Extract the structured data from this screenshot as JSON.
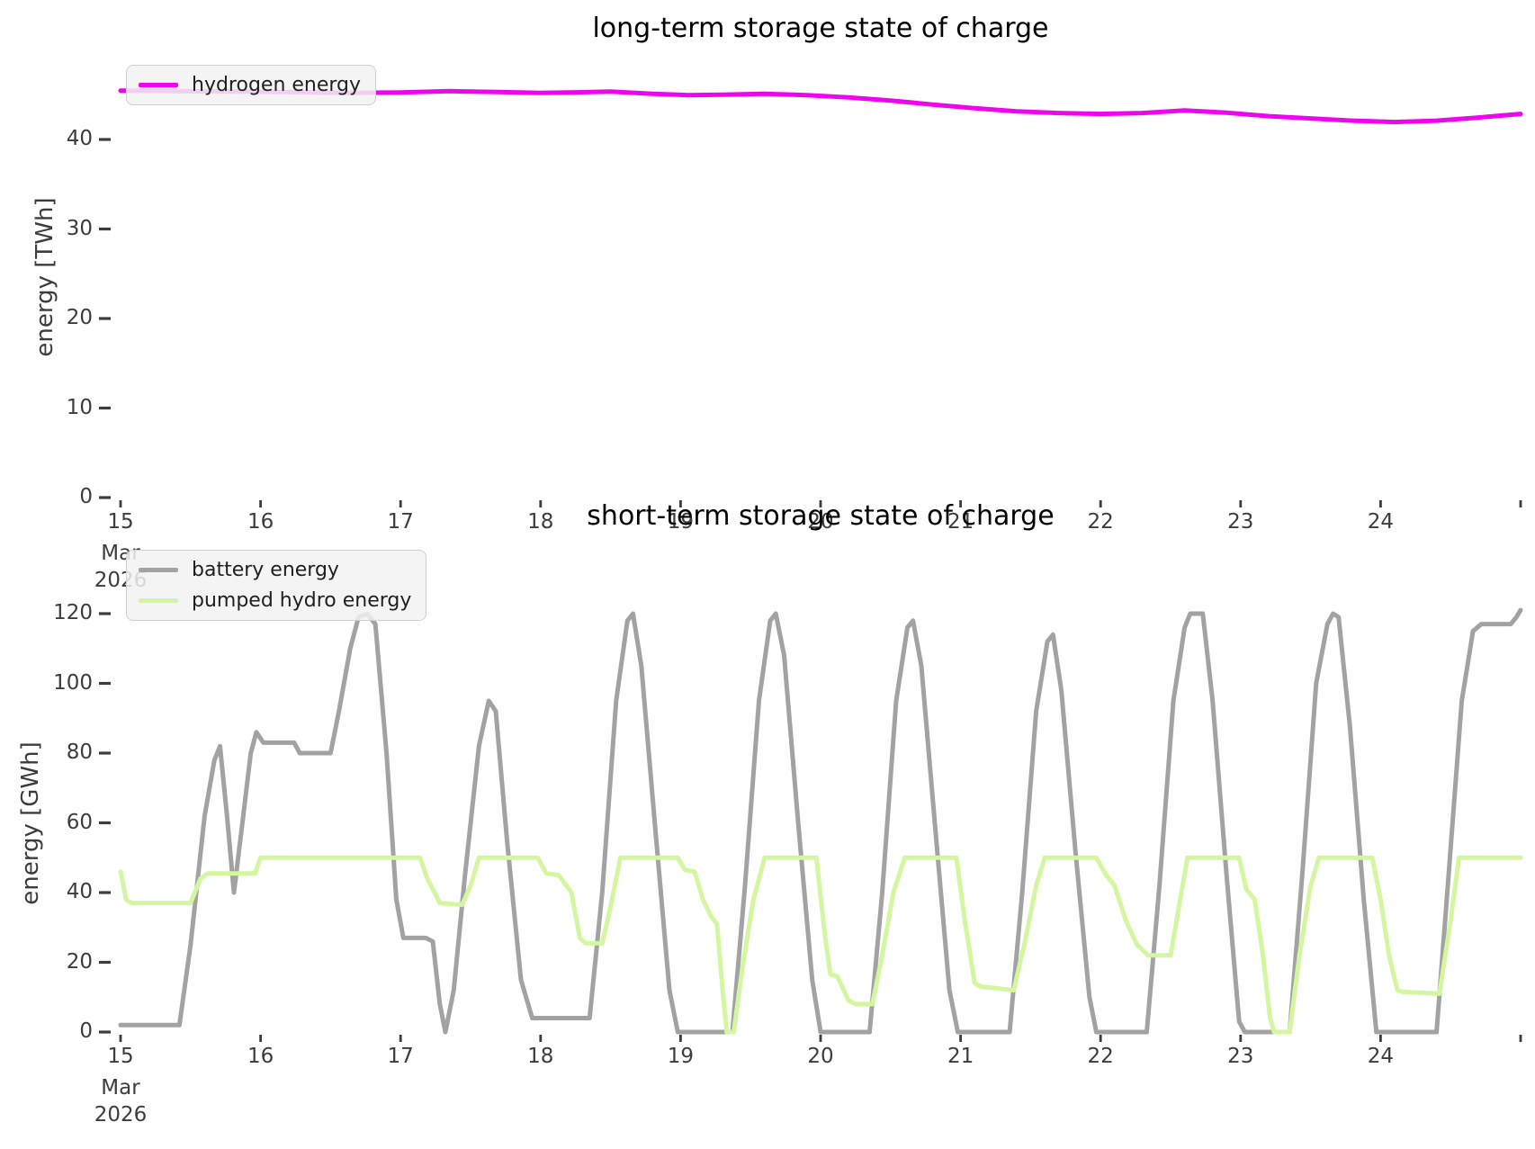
{
  "figure": {
    "background": "#ffffff",
    "tick_color": "#3c3c3c"
  },
  "chart_data": [
    {
      "type": "line",
      "title": "long-term storage state of charge",
      "ylabel": "energy [TWh]",
      "xlim": [
        15,
        25
      ],
      "ylim": [
        0,
        40
      ],
      "yticks": [
        0,
        10,
        20,
        30,
        40
      ],
      "xticks": {
        "days": [
          15,
          16,
          17,
          18,
          19,
          20,
          21,
          22,
          23,
          24
        ],
        "labels": [
          "15",
          "16",
          "17",
          "18",
          "19",
          "20",
          "21",
          "22",
          "23",
          "24"
        ],
        "edge_day": 25,
        "month_label": "Mar",
        "year_label": "2026"
      },
      "legend_position": "upper-left",
      "grid": false,
      "series": [
        {
          "label": "hydrogen energy",
          "color": "#f004f0",
          "points": [
            [
              15.0,
              45.45
            ],
            [
              15.4,
              45.4
            ],
            [
              15.8,
              45.35
            ],
            [
              16.2,
              45.3
            ],
            [
              16.6,
              45.2
            ],
            [
              17.0,
              45.25
            ],
            [
              17.35,
              45.4
            ],
            [
              17.7,
              45.3
            ],
            [
              18.0,
              45.2
            ],
            [
              18.2,
              45.25
            ],
            [
              18.5,
              45.35
            ],
            [
              18.8,
              45.1
            ],
            [
              19.05,
              44.95
            ],
            [
              19.3,
              45.0
            ],
            [
              19.6,
              45.1
            ],
            [
              19.9,
              44.95
            ],
            [
              20.2,
              44.7
            ],
            [
              20.5,
              44.35
            ],
            [
              20.8,
              43.9
            ],
            [
              21.1,
              43.5
            ],
            [
              21.4,
              43.15
            ],
            [
              21.7,
              42.95
            ],
            [
              22.0,
              42.85
            ],
            [
              22.3,
              42.95
            ],
            [
              22.6,
              43.25
            ],
            [
              22.9,
              43.0
            ],
            [
              23.2,
              42.6
            ],
            [
              23.5,
              42.35
            ],
            [
              23.8,
              42.1
            ],
            [
              24.1,
              41.95
            ],
            [
              24.4,
              42.1
            ],
            [
              24.7,
              42.45
            ],
            [
              25.0,
              42.85
            ]
          ]
        }
      ]
    },
    {
      "type": "line",
      "title": "short-term storage state of charge",
      "ylabel": "energy [GWh]",
      "xlim": [
        15,
        25
      ],
      "ylim": [
        0,
        120
      ],
      "yticks": [
        0,
        20,
        40,
        60,
        80,
        100,
        120
      ],
      "xticks": {
        "days": [
          15,
          16,
          17,
          18,
          19,
          20,
          21,
          22,
          23,
          24
        ],
        "labels": [
          "15",
          "16",
          "17",
          "18",
          "19",
          "20",
          "21",
          "22",
          "23",
          "24"
        ],
        "edge_day": 25,
        "month_label": "Mar",
        "year_label": "2026"
      },
      "legend_position": "upper-left",
      "grid": false,
      "series": [
        {
          "label": "battery energy",
          "color": "#a2a2a2",
          "points": [
            [
              15.0,
              2
            ],
            [
              15.42,
              2
            ],
            [
              15.5,
              25
            ],
            [
              15.6,
              62
            ],
            [
              15.67,
              78
            ],
            [
              15.71,
              82
            ],
            [
              15.76,
              62
            ],
            [
              15.81,
              40
            ],
            [
              15.87,
              60
            ],
            [
              15.93,
              80
            ],
            [
              15.97,
              86
            ],
            [
              16.02,
              83
            ],
            [
              16.24,
              83
            ],
            [
              16.28,
              80
            ],
            [
              16.5,
              80
            ],
            [
              16.56,
              92
            ],
            [
              16.64,
              110
            ],
            [
              16.7,
              119
            ],
            [
              16.76,
              120
            ],
            [
              16.82,
              117
            ],
            [
              16.9,
              80
            ],
            [
              16.97,
              38
            ],
            [
              17.02,
              27
            ],
            [
              17.18,
              27
            ],
            [
              17.23,
              26
            ],
            [
              17.28,
              8
            ],
            [
              17.32,
              0
            ],
            [
              17.38,
              12
            ],
            [
              17.46,
              45
            ],
            [
              17.56,
              82
            ],
            [
              17.63,
              95
            ],
            [
              17.68,
              92
            ],
            [
              17.76,
              55
            ],
            [
              17.86,
              15
            ],
            [
              17.94,
              4
            ],
            [
              18.35,
              4
            ],
            [
              18.44,
              40
            ],
            [
              18.54,
              95
            ],
            [
              18.62,
              118
            ],
            [
              18.66,
              120
            ],
            [
              18.72,
              105
            ],
            [
              18.82,
              58
            ],
            [
              18.92,
              12
            ],
            [
              18.98,
              0
            ],
            [
              19.37,
              0
            ],
            [
              19.46,
              42
            ],
            [
              19.56,
              95
            ],
            [
              19.64,
              118
            ],
            [
              19.68,
              120
            ],
            [
              19.74,
              108
            ],
            [
              19.84,
              60
            ],
            [
              19.94,
              15
            ],
            [
              20.0,
              0
            ],
            [
              20.35,
              0
            ],
            [
              20.44,
              40
            ],
            [
              20.54,
              95
            ],
            [
              20.62,
              116
            ],
            [
              20.66,
              118
            ],
            [
              20.72,
              105
            ],
            [
              20.82,
              58
            ],
            [
              20.92,
              12
            ],
            [
              20.98,
              0
            ],
            [
              21.35,
              0
            ],
            [
              21.44,
              40
            ],
            [
              21.54,
              92
            ],
            [
              21.62,
              112
            ],
            [
              21.66,
              114
            ],
            [
              21.72,
              98
            ],
            [
              21.82,
              52
            ],
            [
              21.92,
              10
            ],
            [
              21.97,
              0
            ],
            [
              22.33,
              0
            ],
            [
              22.42,
              42
            ],
            [
              22.52,
              95
            ],
            [
              22.6,
              116
            ],
            [
              22.64,
              120
            ],
            [
              22.73,
              120
            ],
            [
              22.8,
              95
            ],
            [
              22.9,
              45
            ],
            [
              22.99,
              3
            ],
            [
              23.03,
              0
            ],
            [
              23.35,
              0
            ],
            [
              23.44,
              45
            ],
            [
              23.54,
              100
            ],
            [
              23.62,
              117
            ],
            [
              23.66,
              120
            ],
            [
              23.7,
              119
            ],
            [
              23.78,
              88
            ],
            [
              23.88,
              38
            ],
            [
              23.97,
              0
            ],
            [
              24.4,
              0
            ],
            [
              24.48,
              42
            ],
            [
              24.58,
              95
            ],
            [
              24.66,
              115
            ],
            [
              24.72,
              117
            ],
            [
              24.93,
              117
            ],
            [
              24.97,
              119
            ],
            [
              25.0,
              121
            ]
          ]
        },
        {
          "label": "pumped hydro energy",
          "color": "#d5f6a0",
          "points": [
            [
              15.0,
              46
            ],
            [
              15.04,
              38
            ],
            [
              15.08,
              37
            ],
            [
              15.5,
              37
            ],
            [
              15.57,
              44
            ],
            [
              15.62,
              45.5
            ],
            [
              15.96,
              45.5
            ],
            [
              16.0,
              50
            ],
            [
              17.14,
              50
            ],
            [
              17.19,
              44
            ],
            [
              17.23,
              41
            ],
            [
              17.28,
              37
            ],
            [
              17.44,
              36.5
            ],
            [
              17.5,
              42
            ],
            [
              17.56,
              50
            ],
            [
              17.98,
              50
            ],
            [
              18.04,
              45.5
            ],
            [
              18.13,
              45
            ],
            [
              18.22,
              40
            ],
            [
              18.28,
              27
            ],
            [
              18.32,
              25.5
            ],
            [
              18.44,
              25.5
            ],
            [
              18.5,
              36
            ],
            [
              18.57,
              50
            ],
            [
              18.98,
              50
            ],
            [
              19.03,
              46.5
            ],
            [
              19.1,
              46
            ],
            [
              19.16,
              38
            ],
            [
              19.22,
              33
            ],
            [
              19.26,
              31
            ],
            [
              19.3,
              12
            ],
            [
              19.33,
              0
            ],
            [
              19.38,
              0
            ],
            [
              19.44,
              18
            ],
            [
              19.52,
              38
            ],
            [
              19.6,
              50
            ],
            [
              19.97,
              50
            ],
            [
              20.03,
              28
            ],
            [
              20.07,
              16.5
            ],
            [
              20.12,
              16
            ],
            [
              20.2,
              9
            ],
            [
              20.25,
              8
            ],
            [
              20.37,
              8
            ],
            [
              20.44,
              22
            ],
            [
              20.52,
              40
            ],
            [
              20.6,
              50
            ],
            [
              20.97,
              50
            ],
            [
              21.03,
              32
            ],
            [
              21.1,
              14
            ],
            [
              21.15,
              13
            ],
            [
              21.38,
              12
            ],
            [
              21.46,
              26
            ],
            [
              21.54,
              42
            ],
            [
              21.6,
              50
            ],
            [
              21.97,
              50
            ],
            [
              22.04,
              45
            ],
            [
              22.1,
              42
            ],
            [
              22.18,
              32
            ],
            [
              22.26,
              25
            ],
            [
              22.34,
              22
            ],
            [
              22.5,
              22
            ],
            [
              22.56,
              36
            ],
            [
              22.62,
              50
            ],
            [
              22.99,
              50
            ],
            [
              23.04,
              41
            ],
            [
              23.1,
              38
            ],
            [
              23.16,
              22
            ],
            [
              23.21,
              4
            ],
            [
              23.24,
              0
            ],
            [
              23.35,
              0
            ],
            [
              23.42,
              22
            ],
            [
              23.5,
              42
            ],
            [
              23.56,
              50
            ],
            [
              23.94,
              50
            ],
            [
              24.0,
              38
            ],
            [
              24.06,
              22
            ],
            [
              24.12,
              12
            ],
            [
              24.16,
              11.5
            ],
            [
              24.42,
              11
            ],
            [
              24.5,
              32
            ],
            [
              24.56,
              50
            ],
            [
              25.0,
              50
            ]
          ]
        }
      ]
    }
  ]
}
